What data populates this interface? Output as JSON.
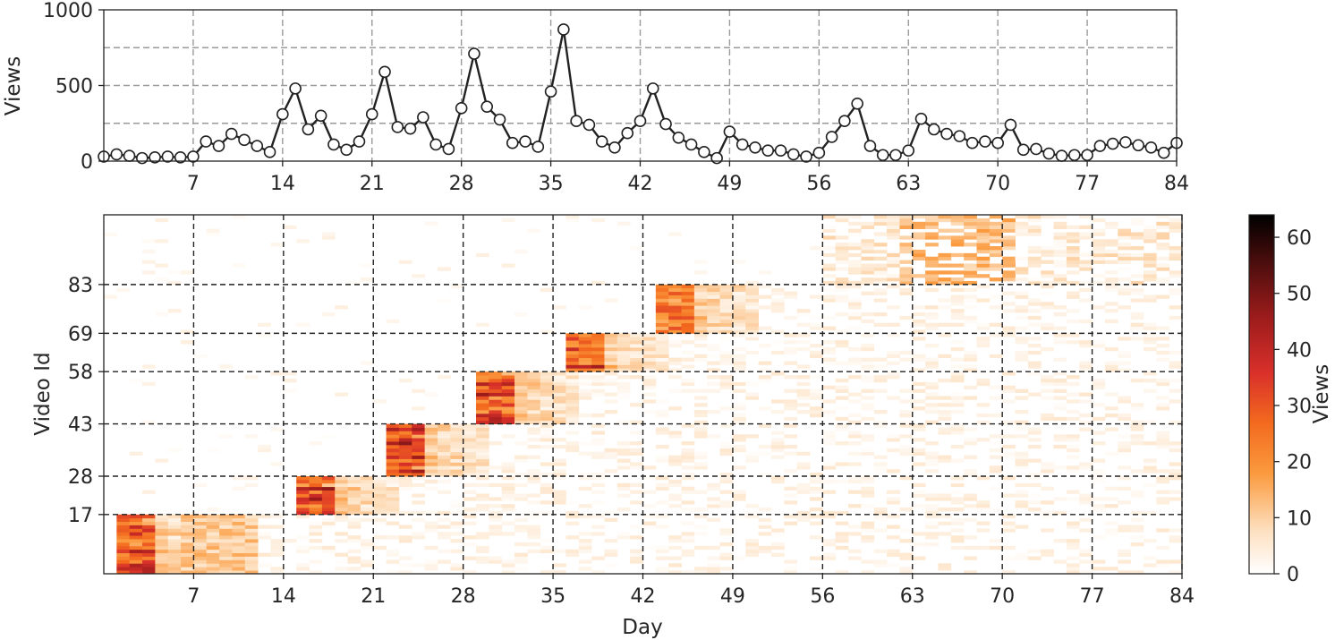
{
  "chart_data": [
    {
      "type": "line",
      "ylabel": "Views",
      "xlim": [
        0,
        84
      ],
      "ylim": [
        0,
        1000
      ],
      "xticks": [
        7,
        14,
        21,
        28,
        35,
        42,
        49,
        56,
        63,
        70,
        77,
        84
      ],
      "yticks": [
        0,
        500,
        1000
      ],
      "grid": true,
      "x": [
        0,
        1,
        2,
        3,
        4,
        5,
        6,
        7,
        8,
        9,
        10,
        11,
        12,
        13,
        14,
        15,
        16,
        17,
        18,
        19,
        20,
        21,
        22,
        23,
        24,
        25,
        26,
        27,
        28,
        29,
        30,
        31,
        32,
        33,
        34,
        35,
        36,
        37,
        38,
        39,
        40,
        41,
        42,
        43,
        44,
        45,
        46,
        47,
        48,
        49,
        50,
        51,
        52,
        53,
        54,
        55,
        56,
        57,
        58,
        59,
        60,
        61,
        62,
        63,
        64,
        65,
        66,
        67,
        68,
        69,
        70,
        71,
        72,
        73,
        74,
        75,
        76,
        77,
        78,
        79,
        80,
        81,
        82,
        83,
        84
      ],
      "values": [
        30,
        45,
        35,
        20,
        25,
        30,
        25,
        30,
        130,
        100,
        180,
        140,
        100,
        60,
        310,
        480,
        210,
        300,
        110,
        75,
        130,
        310,
        590,
        225,
        215,
        290,
        110,
        80,
        350,
        710,
        360,
        275,
        120,
        130,
        95,
        460,
        870,
        265,
        240,
        130,
        90,
        185,
        265,
        480,
        245,
        155,
        110,
        60,
        20,
        195,
        110,
        90,
        70,
        70,
        45,
        30,
        55,
        160,
        265,
        380,
        100,
        40,
        40,
        70,
        280,
        210,
        180,
        165,
        120,
        130,
        120,
        240,
        75,
        80,
        50,
        35,
        40,
        40,
        100,
        115,
        125,
        105,
        90,
        55,
        120
      ]
    },
    {
      "type": "heatmap",
      "xlabel": "Day",
      "ylabel": "Video Id",
      "xlim": [
        0,
        84
      ],
      "xticks": [
        7,
        14,
        21,
        28,
        35,
        42,
        49,
        56,
        63,
        70,
        77,
        84
      ],
      "yticks": [
        17,
        28,
        43,
        58,
        69,
        83
      ],
      "ylim": [
        0,
        103
      ],
      "grid": true,
      "colormap": "white-orange-red-black",
      "colorbar": {
        "label": "Views",
        "min": 0,
        "max": 64,
        "ticks": [
          0,
          10,
          20,
          30,
          40,
          50,
          60
        ]
      },
      "upload_days": [
        0,
        14,
        21,
        28,
        35,
        42,
        56
      ],
      "group_id_ranges": [
        [
          0,
          17
        ],
        [
          17,
          28
        ],
        [
          28,
          43
        ],
        [
          43,
          58
        ],
        [
          58,
          69
        ],
        [
          69,
          83
        ],
        [
          83,
          103
        ]
      ]
    }
  ]
}
